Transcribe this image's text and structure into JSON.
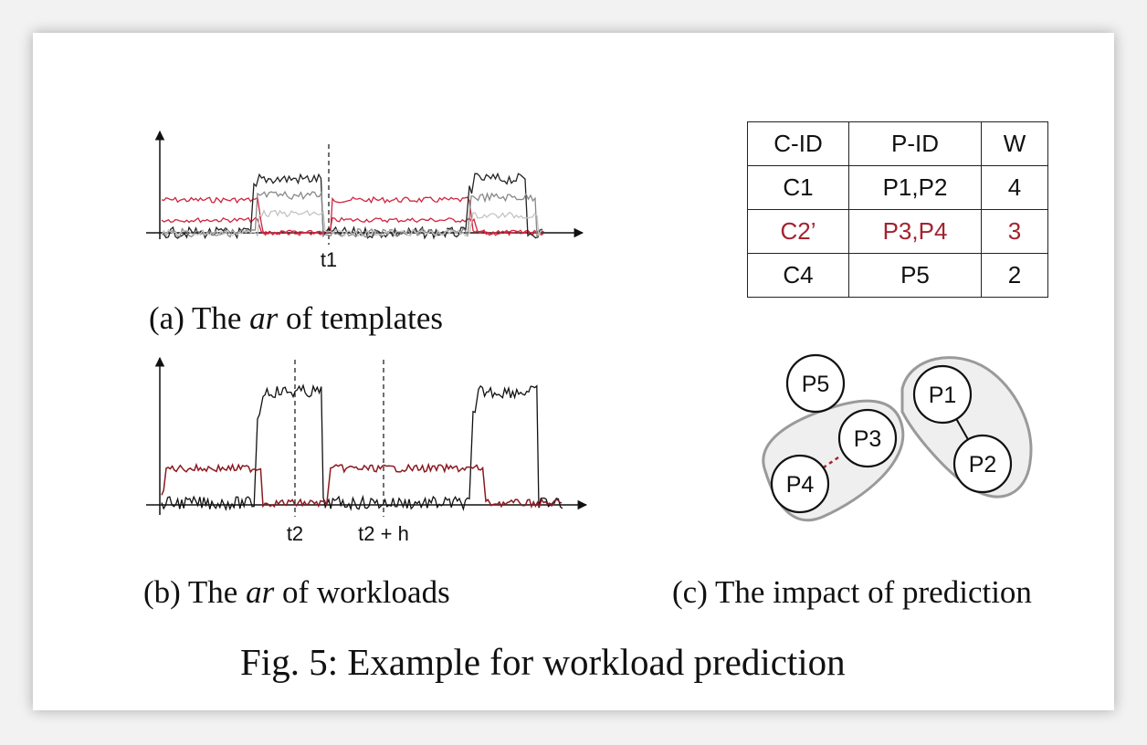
{
  "figure": {
    "caption": "Fig. 5: Example for workload prediction",
    "colors": {
      "red": "#d0243c",
      "darkred": "#8b1a22",
      "black": "#111111",
      "grey": "#808080",
      "lightgrey": "#c0c0c0"
    }
  },
  "panel_a": {
    "caption_prefix": "(a) The",
    "caption_var": "ar",
    "caption_suffix": "of templates",
    "marker_label": "t1"
  },
  "panel_b": {
    "caption_prefix": "(b) The",
    "caption_var": "ar",
    "caption_suffix": "of workloads",
    "marker1_label": "t2",
    "marker2_label": "t2 + h"
  },
  "panel_c": {
    "caption": "(c) The impact of prediction",
    "table": {
      "headers": [
        "C-ID",
        "P-ID",
        "W"
      ],
      "rows": [
        {
          "cells": [
            "C1",
            "P1,P2",
            "4"
          ],
          "highlight": false
        },
        {
          "cells": [
            "C2’",
            "P3,P4",
            "3"
          ],
          "highlight": true
        },
        {
          "cells": [
            "C4",
            "P5",
            "2"
          ],
          "highlight": false
        }
      ]
    },
    "nodes": {
      "p1": "P1",
      "p2": "P2",
      "p3": "P3",
      "p4": "P4",
      "p5": "P5"
    }
  }
}
